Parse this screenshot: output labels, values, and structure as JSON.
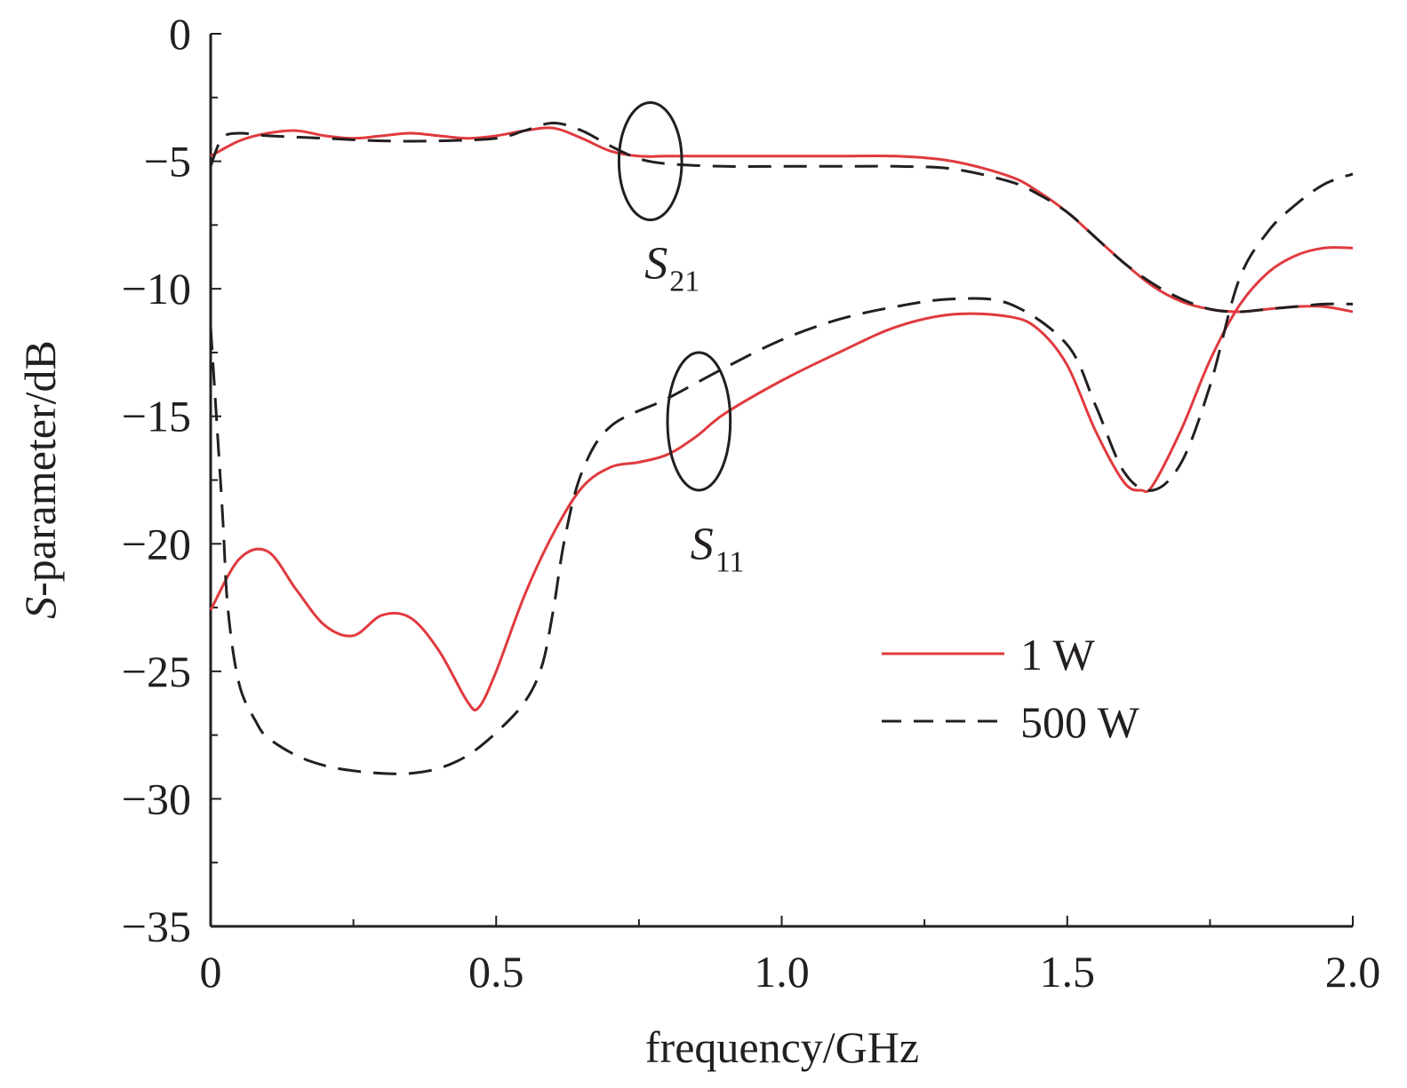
{
  "chart_data": {
    "type": "line",
    "xlabel": "frequency/GHz",
    "ylabel_italic": "S",
    "ylabel_rest": "-parameter/dB",
    "xlim": [
      0,
      2.0
    ],
    "ylim": [
      -35,
      0
    ],
    "x_ticks": [
      0,
      0.5,
      1.0,
      1.5,
      2.0
    ],
    "x_tick_labels": [
      "0",
      "0.5",
      "1.0",
      "1.5",
      "2.0"
    ],
    "y_ticks": [
      0,
      -5,
      -10,
      -15,
      -20,
      -25,
      -30,
      -35
    ],
    "y_tick_labels": [
      "0",
      "−5",
      "−10",
      "−15",
      "−20",
      "−25",
      "−30",
      "−35"
    ],
    "x_minor_step": 0.25,
    "y_minor_step": 2.5,
    "grid": false,
    "legend_position": "bottom-right",
    "legend": [
      {
        "label": "1 W",
        "color": "#e03a3e",
        "dash": "solid"
      },
      {
        "label": "500 W",
        "color": "#231f20",
        "dash": "dashed"
      }
    ],
    "annotations": [
      {
        "main": "S",
        "sub": "21",
        "ellipse_center": [
          0.77,
          -5.0
        ],
        "ellipse_radii": [
          0.055,
          2.3
        ],
        "text_at": [
          0.76,
          -9.6
        ]
      },
      {
        "main": "S",
        "sub": "11",
        "ellipse_center": [
          0.855,
          -15.2
        ],
        "ellipse_radii": [
          0.055,
          2.7
        ],
        "text_at": [
          0.84,
          -20.6
        ]
      }
    ],
    "series": [
      {
        "name": "1 W",
        "group": "S21",
        "color": "#e03a3e",
        "dash": "solid",
        "x": [
          0,
          0.05,
          0.1,
          0.15,
          0.2,
          0.25,
          0.3,
          0.35,
          0.4,
          0.45,
          0.5,
          0.55,
          0.6,
          0.65,
          0.7,
          0.75,
          0.8,
          0.9,
          1.0,
          1.1,
          1.2,
          1.3,
          1.4,
          1.45,
          1.5,
          1.55,
          1.6,
          1.65,
          1.7,
          1.75,
          1.8,
          1.85,
          1.9,
          1.95,
          2.0
        ],
        "y": [
          -4.8,
          -4.2,
          -3.9,
          -3.8,
          -4.0,
          -4.1,
          -4.0,
          -3.9,
          -4.0,
          -4.1,
          -4.0,
          -3.8,
          -3.7,
          -4.1,
          -4.6,
          -4.8,
          -4.8,
          -4.8,
          -4.8,
          -4.8,
          -4.8,
          -5.0,
          -5.6,
          -6.2,
          -7.0,
          -8.0,
          -9.0,
          -9.9,
          -10.5,
          -10.8,
          -10.9,
          -10.8,
          -10.7,
          -10.7,
          -10.9
        ]
      },
      {
        "name": "500 W",
        "group": "S21",
        "color": "#231f20",
        "dash": "dashed",
        "x": [
          0,
          0.02,
          0.05,
          0.1,
          0.2,
          0.3,
          0.4,
          0.5,
          0.55,
          0.6,
          0.65,
          0.7,
          0.75,
          0.8,
          0.9,
          1.0,
          1.1,
          1.2,
          1.3,
          1.4,
          1.45,
          1.5,
          1.55,
          1.6,
          1.65,
          1.7,
          1.75,
          1.8,
          1.85,
          1.9,
          1.95,
          2.0
        ],
        "y": [
          -5.2,
          -4.1,
          -3.9,
          -4.0,
          -4.1,
          -4.2,
          -4.2,
          -4.1,
          -3.8,
          -3.5,
          -3.8,
          -4.4,
          -4.9,
          -5.1,
          -5.2,
          -5.2,
          -5.2,
          -5.2,
          -5.3,
          -5.8,
          -6.3,
          -7.0,
          -8.0,
          -9.0,
          -9.8,
          -10.4,
          -10.8,
          -10.9,
          -10.8,
          -10.7,
          -10.6,
          -10.6
        ]
      },
      {
        "name": "1 W",
        "group": "S11",
        "color": "#e03a3e",
        "dash": "solid",
        "x": [
          0,
          0.05,
          0.1,
          0.15,
          0.2,
          0.25,
          0.3,
          0.35,
          0.4,
          0.45,
          0.47,
          0.5,
          0.55,
          0.6,
          0.65,
          0.7,
          0.75,
          0.8,
          0.85,
          0.9,
          1.0,
          1.1,
          1.2,
          1.3,
          1.4,
          1.45,
          1.5,
          1.55,
          1.6,
          1.63,
          1.65,
          1.7,
          1.75,
          1.8,
          1.85,
          1.9,
          1.95,
          2.0
        ],
        "y": [
          -22.6,
          -20.6,
          -20.3,
          -21.8,
          -23.2,
          -23.6,
          -22.8,
          -22.9,
          -24.2,
          -26.2,
          -26.4,
          -25.0,
          -22.0,
          -19.6,
          -17.8,
          -17.0,
          -16.8,
          -16.5,
          -15.8,
          -14.9,
          -13.6,
          -12.5,
          -11.5,
          -11.0,
          -11.1,
          -11.6,
          -13.0,
          -15.6,
          -17.6,
          -17.9,
          -17.7,
          -15.5,
          -12.8,
          -10.7,
          -9.4,
          -8.7,
          -8.4,
          -8.4
        ]
      },
      {
        "name": "500 W",
        "group": "S11",
        "color": "#231f20",
        "dash": "dashed",
        "x": [
          0,
          0.02,
          0.03,
          0.05,
          0.08,
          0.1,
          0.15,
          0.2,
          0.25,
          0.3,
          0.35,
          0.4,
          0.45,
          0.5,
          0.55,
          0.58,
          0.6,
          0.62,
          0.65,
          0.7,
          0.8,
          0.9,
          1.0,
          1.1,
          1.2,
          1.3,
          1.4,
          1.5,
          1.55,
          1.6,
          1.65,
          1.7,
          1.75,
          1.8,
          1.85,
          1.9,
          1.95,
          2.0
        ],
        "y": [
          -11.5,
          -18.5,
          -22.5,
          -25.5,
          -27.0,
          -27.6,
          -28.3,
          -28.7,
          -28.9,
          -29.0,
          -29.0,
          -28.8,
          -28.3,
          -27.4,
          -26.2,
          -24.8,
          -22.6,
          -19.8,
          -17.2,
          -15.4,
          -14.3,
          -13.1,
          -12.0,
          -11.2,
          -10.7,
          -10.4,
          -10.6,
          -12.2,
          -14.6,
          -17.2,
          -17.9,
          -16.8,
          -13.8,
          -9.7,
          -7.8,
          -6.7,
          -5.9,
          -5.5
        ]
      }
    ]
  }
}
